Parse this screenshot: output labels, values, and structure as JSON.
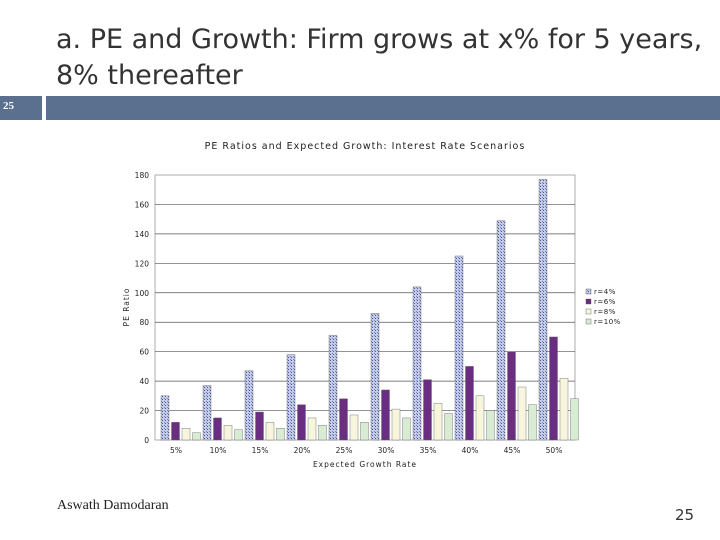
{
  "slide": {
    "title": "a. PE and Growth: Firm grows at x% for 5 years, 8% thereafter",
    "bar_number": "25",
    "author": "Aswath Damodaran",
    "page_number": "25"
  },
  "chart_data": {
    "type": "bar",
    "title": "PE Ratios and Expected Growth: Interest Rate Scenarios",
    "xlabel": "Expected Growth Rate",
    "ylabel": "PE Ratio",
    "ylim": [
      0,
      180
    ],
    "yticks": [
      0,
      20,
      40,
      60,
      80,
      100,
      120,
      140,
      160,
      180
    ],
    "yticklabels": [
      "0",
      "20",
      "40",
      "60",
      "80",
      "100",
      "120",
      "140",
      "160",
      "180"
    ],
    "grid": true,
    "legend_position": "right",
    "categories": [
      "5%",
      "10%",
      "15%",
      "20%",
      "25%",
      "30%",
      "35%",
      "40%",
      "45%",
      "50%"
    ],
    "series": [
      {
        "name": "r=4%",
        "color": "#a9b4da",
        "values": [
          30,
          37,
          47,
          58,
          71,
          86,
          104,
          125,
          149,
          177
        ]
      },
      {
        "name": "r=6%",
        "color": "#6a2d82",
        "values": [
          12,
          15,
          19,
          24,
          28,
          34,
          41,
          50,
          60,
          70
        ]
      },
      {
        "name": "r=8%",
        "color": "#f7f5dc",
        "values": [
          8,
          10,
          12,
          15,
          17,
          21,
          25,
          30,
          36,
          42
        ]
      },
      {
        "name": "r=10%",
        "color": "#d8ecd3",
        "values": [
          5,
          7,
          8,
          10,
          12,
          15,
          18,
          20,
          24,
          28
        ]
      }
    ]
  }
}
